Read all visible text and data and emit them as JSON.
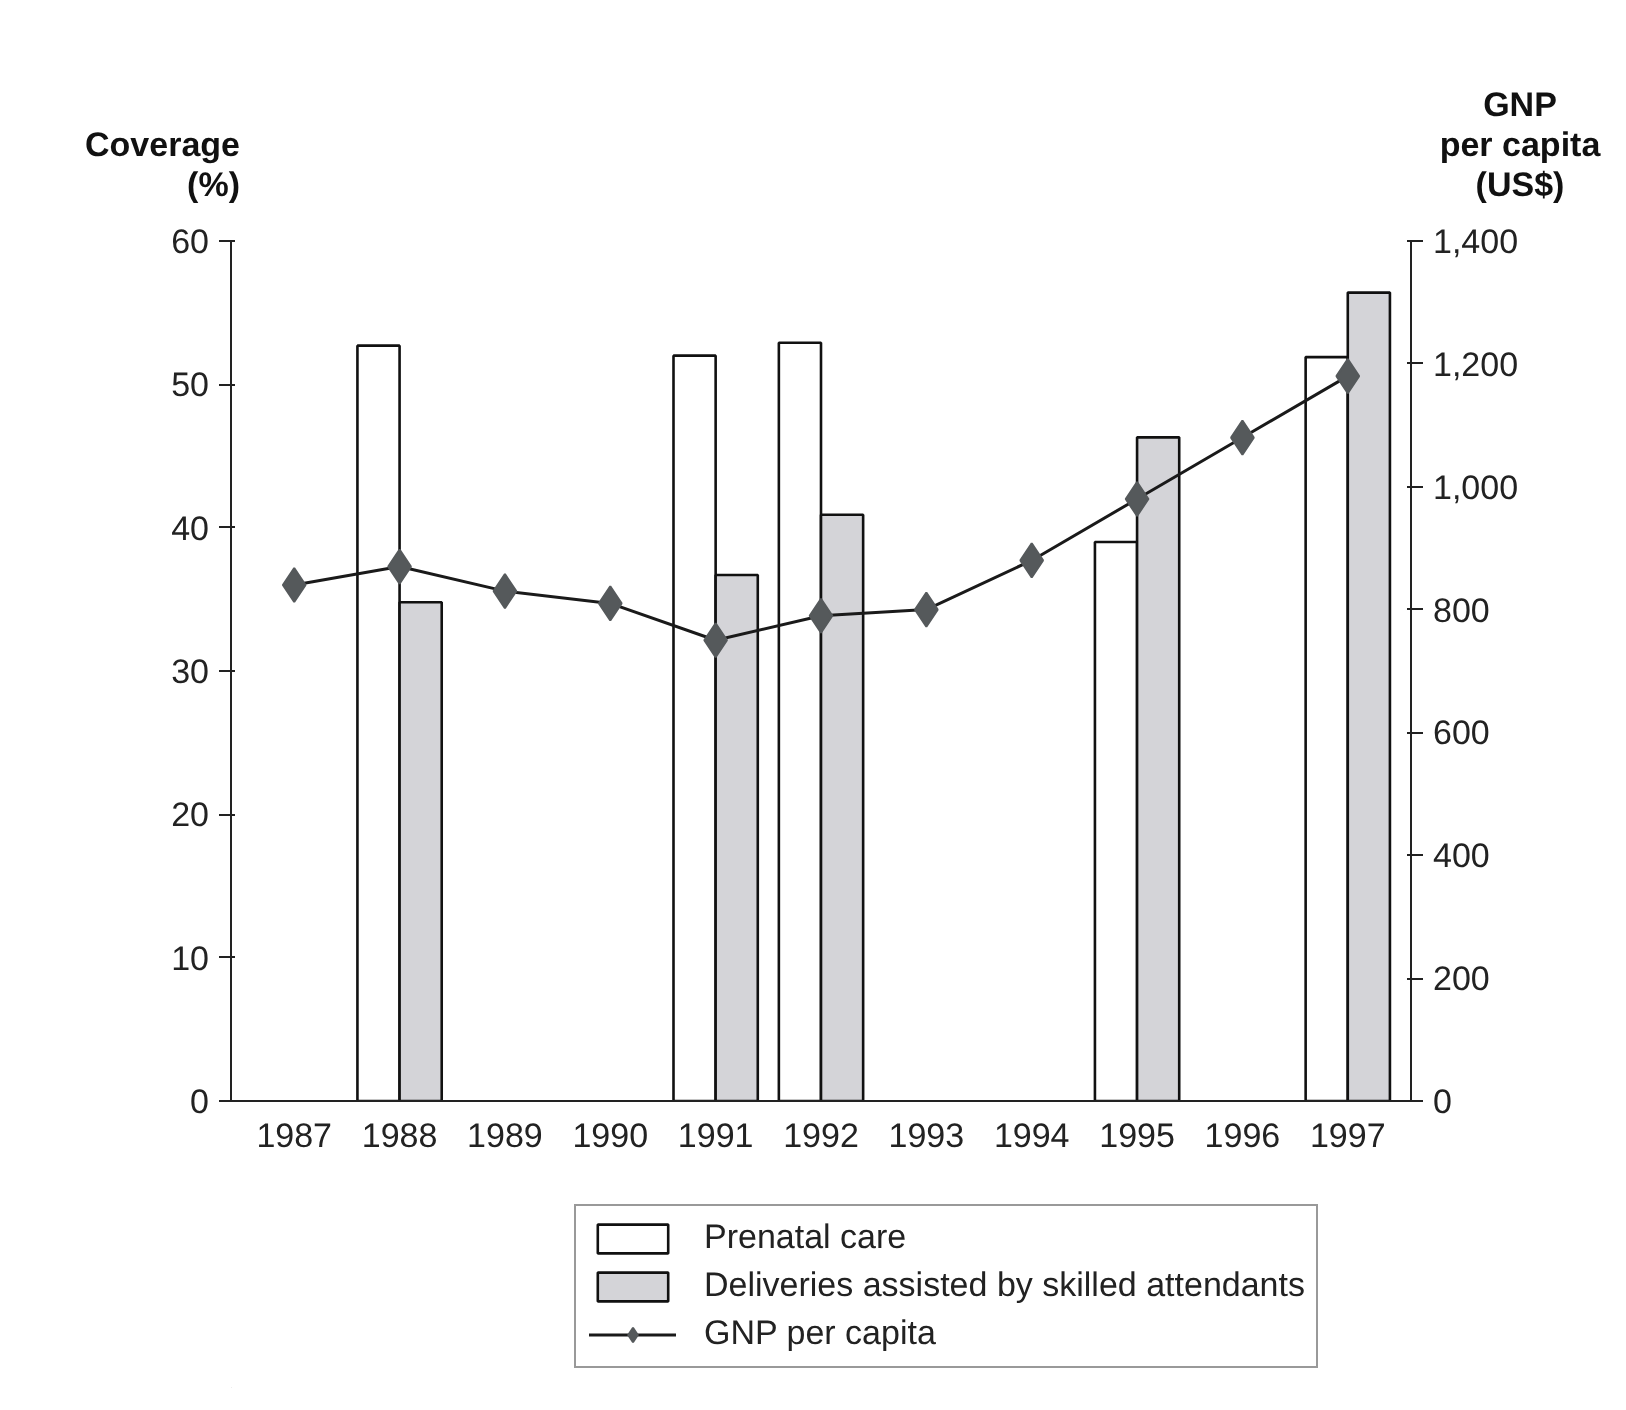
{
  "chart_data": {
    "type": "bar",
    "ylabel": "Coverage\n(%)",
    "y2label": "GNP\nper capita\n(US$)",
    "categories": [
      "1987",
      "1988",
      "1989",
      "1990",
      "1991",
      "1992",
      "1993",
      "1994",
      "1995",
      "1996",
      "1997"
    ],
    "ylim": [
      0,
      60
    ],
    "yticks": [
      0,
      10,
      20,
      30,
      40,
      50,
      60
    ],
    "y2lim": [
      0,
      1400
    ],
    "y2ticks": [
      0,
      200,
      400,
      600,
      800,
      {
        "value": 1000,
        "label": "1,000"
      },
      {
        "value": 1200,
        "label": "1,200"
      },
      {
        "value": 1400,
        "label": "1,400"
      }
    ],
    "grid": false,
    "legend": "bottom",
    "series": [
      {
        "name": "Prenatal care",
        "color": "#ffffff",
        "values": [
          null,
          52.7,
          null,
          null,
          52.0,
          52.9,
          null,
          null,
          39.0,
          null,
          51.9
        ]
      },
      {
        "name": "Deliveries assisted by skilled attendants",
        "color": "#d4d4d8",
        "values": [
          null,
          34.8,
          null,
          null,
          36.7,
          40.9,
          null,
          null,
          46.3,
          null,
          56.4
        ]
      },
      {
        "name": "GNP per capita",
        "type": "line",
        "axis": "y2",
        "marker": "diamond",
        "color": "#55595b",
        "values": [
          840,
          870,
          830,
          810,
          750,
          790,
          800,
          880,
          980,
          1080,
          1180
        ]
      }
    ]
  }
}
